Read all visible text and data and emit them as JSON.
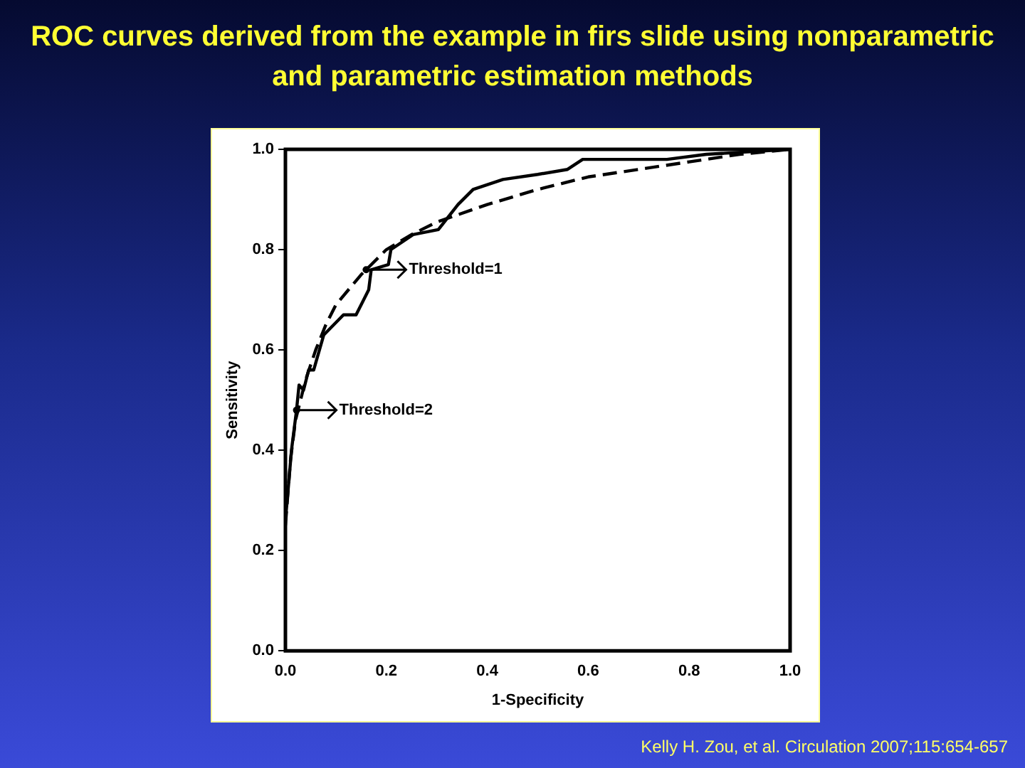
{
  "chart_data": {
    "type": "line",
    "title": "ROC curves derived from the example in firs slide using nonparametric and parametric estimation methods",
    "xlabel": "1-Specificity",
    "ylabel": "Sensitivity",
    "xlim": [
      0,
      1
    ],
    "ylim": [
      0,
      1
    ],
    "xticks": [
      {
        "value": 0,
        "label": "0.0"
      },
      {
        "value": 0.2,
        "label": "0.2"
      },
      {
        "value": 0.4,
        "label": "0.4"
      },
      {
        "value": 0.6,
        "label": "0.6"
      },
      {
        "value": 0.8,
        "label": "0.8"
      },
      {
        "value": 1,
        "label": "1.0"
      }
    ],
    "yticks": [
      {
        "value": 0,
        "label": "0.0"
      },
      {
        "value": 0.2,
        "label": "0.2"
      },
      {
        "value": 0.4,
        "label": "0.4"
      },
      {
        "value": 0.6,
        "label": "0.6"
      },
      {
        "value": 0.8,
        "label": "0.8"
      },
      {
        "value": 1,
        "label": "1.0"
      }
    ],
    "grid": false,
    "legend": false,
    "marker": "none",
    "series": [
      {
        "color": "#000000",
        "line_style": "solid",
        "x": [
          0,
          0.007,
          0.012,
          0.022,
          0.027,
          0.036,
          0.046,
          0.056,
          0.076,
          0.115,
          0.14,
          0.165,
          0.17,
          0.204,
          0.209,
          0.253,
          0.303,
          0.342,
          0.372,
          0.431,
          0.5,
          0.559,
          0.589,
          0.756,
          0.834,
          1
        ],
        "values": [
          0.26,
          0.34,
          0.4,
          0.48,
          0.53,
          0.52,
          0.56,
          0.56,
          0.63,
          0.67,
          0.67,
          0.72,
          0.76,
          0.77,
          0.8,
          0.83,
          0.84,
          0.89,
          0.92,
          0.94,
          0.95,
          0.96,
          0.98,
          0.98,
          0.99,
          1
        ]
      },
      {
        "color": "#000000",
        "line_style": "dashed",
        "x": [
          0,
          0.01,
          0.02,
          0.04,
          0.06,
          0.08,
          0.1,
          0.15,
          0.2,
          0.25,
          0.3,
          0.4,
          0.5,
          0.6,
          0.7,
          0.8,
          0.9,
          1
        ],
        "values": [
          0.25,
          0.38,
          0.46,
          0.54,
          0.6,
          0.65,
          0.69,
          0.75,
          0.8,
          0.83,
          0.855,
          0.89,
          0.92,
          0.945,
          0.96,
          0.975,
          0.99,
          1
        ]
      }
    ],
    "annotations": [
      {
        "text": "Threshold=1",
        "x": 0.16,
        "y": 0.76
      },
      {
        "text": "Threshold=2",
        "x": 0.022,
        "y": 0.48
      },
      "Kelly H. Zou, et al. Circulation 2007;115:654-657"
    ]
  }
}
